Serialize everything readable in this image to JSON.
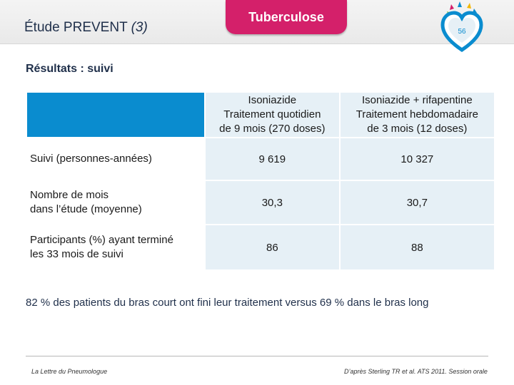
{
  "header": {
    "study_title": "Étude PREVENT",
    "study_title_suffix": "(3)",
    "topic_tab": "Tuberculose",
    "page_number": "56"
  },
  "section_title": "Résultats : suivi",
  "table": {
    "columns": [
      {
        "line1": "Isoniazide",
        "line2": "Traitement quotidien",
        "line3": "de 9 mois (270 doses)"
      },
      {
        "line1": "Isoniazide + rifapentine",
        "line2": "Traitement hebdomadaire",
        "line3": "de 3 mois (12 doses)"
      }
    ],
    "rows": [
      {
        "label_line1": "Suivi (personnes-années)",
        "label_line2": "",
        "values": [
          "9 619",
          "10 327"
        ]
      },
      {
        "label_line1": "Nombre de mois",
        "label_line2": "dans l’étude (moyenne)",
        "values": [
          "30,3",
          "30,7"
        ]
      },
      {
        "label_line1": "Participants (%) ayant terminé",
        "label_line2": "les 33 mois de suivi",
        "values": [
          "86",
          "88"
        ]
      }
    ]
  },
  "conclusion": "82 % des patients du bras court ont fini leur traitement versus 69 % dans le bras long",
  "footer": {
    "journal": "La Lettre du Pneumologue",
    "source": "D’après Sterling TR et al. ATS 2011. Session orale"
  },
  "colors": {
    "accent_magenta": "#d4206a",
    "header_blue": "#0a8ccf",
    "cell_bg": "#e6f0f6"
  }
}
